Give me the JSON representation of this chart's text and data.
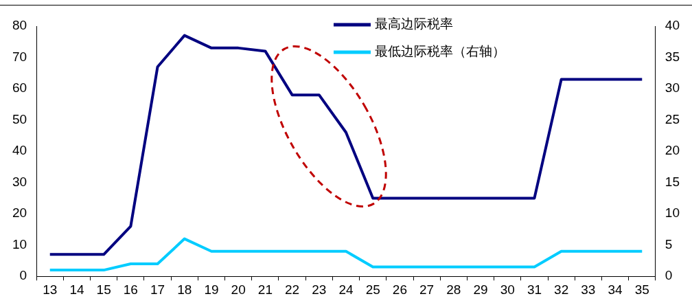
{
  "chart_data": {
    "type": "line",
    "categories": [
      "13",
      "14",
      "15",
      "16",
      "17",
      "18",
      "19",
      "20",
      "21",
      "22",
      "23",
      "24",
      "25",
      "26",
      "27",
      "28",
      "29",
      "30",
      "31",
      "32",
      "33",
      "34",
      "35"
    ],
    "series": [
      {
        "name": "最高边际税率",
        "color": "#000080",
        "values": [
          7,
          7,
          7,
          16,
          67,
          77,
          73,
          73,
          72,
          58,
          58,
          46,
          25,
          25,
          25,
          25,
          25,
          25,
          25,
          63,
          63,
          63,
          63
        ]
      },
      {
        "name": "最低边际税率（右轴）",
        "color": "#00ccff",
        "axis": "y2",
        "values": [
          1,
          1,
          1,
          2,
          2,
          6,
          4,
          4,
          4,
          4,
          4,
          4,
          1.5,
          1.5,
          1.5,
          1.5,
          1.5,
          1.5,
          1.5,
          4,
          4,
          4,
          4
        ]
      }
    ],
    "ylim": [
      0,
      80
    ],
    "yticks": [
      0,
      10,
      20,
      30,
      40,
      50,
      60,
      70,
      80
    ],
    "y2lim": [
      0,
      40
    ],
    "y2ticks": [
      0,
      5,
      10,
      15,
      20,
      25,
      30,
      35,
      40
    ],
    "grid": false,
    "legend": "top",
    "marker": "none",
    "line_style": "solid"
  }
}
